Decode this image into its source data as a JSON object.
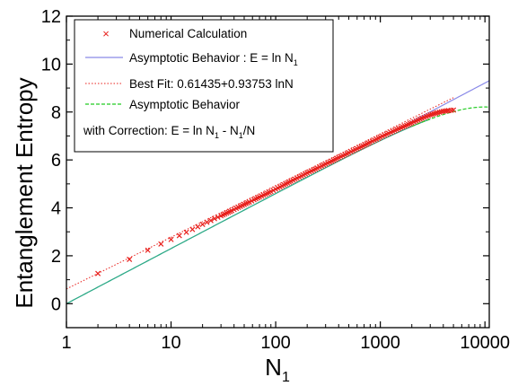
{
  "chart_data": {
    "type": "line",
    "xscale": "log",
    "xlim": [
      1,
      11000
    ],
    "ylim": [
      -1,
      12
    ],
    "xticks": [
      1,
      10,
      100,
      1000,
      10000
    ],
    "xtick_labels": [
      "1",
      "10",
      "100",
      "1000",
      "10000"
    ],
    "yticks": [
      0,
      2,
      4,
      6,
      8,
      10,
      12
    ],
    "ytick_labels": [
      "0",
      "2",
      "4",
      "6",
      "8",
      "10",
      "12"
    ],
    "xlabel": "N",
    "xlabel_sub": "1",
    "ylabel": "Entanglement Entropy",
    "legend_position": "top-left",
    "legend": {
      "numerical": "Numerical Calculation",
      "asym_a": "Asymptotic Behavior : E = ln N",
      "asym_sub": "1",
      "fit": "Best Fit: 0.61435+0.93753 lnN",
      "corr_a": "Asymptotic Behavior",
      "corr_b1": "with Correction: E = ln N",
      "corr_b2": " - N",
      "corr_b3": "/N"
    },
    "series": [
      {
        "name": "Numerical Calculation",
        "style": "markers-x",
        "color": "#e8201c",
        "x": [
          2,
          4,
          6,
          8,
          10,
          12,
          14,
          16,
          18,
          20,
          22,
          24,
          26,
          28,
          30,
          34,
          38,
          42,
          46,
          50,
          56,
          62,
          70,
          80,
          90,
          100,
          120,
          140,
          160,
          200,
          250,
          300,
          400,
          500,
          600,
          800,
          1000,
          1200,
          1500,
          2000,
          2500,
          3000,
          3500,
          4000,
          4500,
          5000
        ],
        "y": [
          1.26,
          1.85,
          2.23,
          2.49,
          2.68,
          2.84,
          2.98,
          3.1,
          3.21,
          3.31,
          3.4,
          3.47,
          3.55,
          3.61,
          3.67,
          3.78,
          3.88,
          3.98,
          4.06,
          4.14,
          4.24,
          4.34,
          4.45,
          4.57,
          4.68,
          4.78,
          4.96,
          5.11,
          5.24,
          5.46,
          5.66,
          5.83,
          6.1,
          6.3,
          6.47,
          6.74,
          6.95,
          7.11,
          7.31,
          7.55,
          7.74,
          7.88,
          7.97,
          8.03,
          8.06,
          8.08
        ]
      },
      {
        "name": "Asymptotic Behavior : E = ln N1",
        "style": "solid",
        "color": "#8a8ae8",
        "formula": "ln N",
        "x_range": [
          1,
          11000
        ]
      },
      {
        "name": "Best Fit: 0.61435+0.93753 lnN",
        "style": "dotted",
        "color": "#e8201c",
        "intercept": 0.61435,
        "slope": 0.93753,
        "x_range": [
          1,
          5000
        ]
      },
      {
        "name": "Asymptotic Behavior with Correction: E = ln N1 - N1/N",
        "style": "dashed",
        "color": "#22cc22",
        "formula": "ln N - N/N_total",
        "N_total": 10000,
        "x_range": [
          1,
          11000
        ]
      }
    ],
    "colors": {
      "axis": "#000000",
      "low_x_line": "#2eaa88"
    }
  }
}
